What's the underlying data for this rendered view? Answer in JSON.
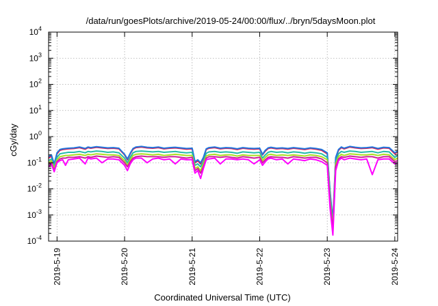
{
  "chart_data": {
    "type": "line",
    "title": "/data/run/goesPlots/archive/2019-05-24/00:00/flux/../bryn/5daysMoon.plot",
    "xlabel": "Coordinated Universal Time (UTC)",
    "ylabel": "cGy/day",
    "yscale": "log",
    "ylim": [
      0.0001,
      10000
    ],
    "xlim": [
      "2019-05-18 21:00",
      "2019-05-24 01:00"
    ],
    "grid": true,
    "legend": "none",
    "x_tick_labels": [
      "2019-5-19",
      "2019-5-20",
      "2019-5-21",
      "2019-5-22",
      "2019-5-23",
      "2019-5-24"
    ],
    "y_tick_labels": [
      {
        "base": "10",
        "exp": "-4"
      },
      {
        "base": "10",
        "exp": "-3"
      },
      {
        "base": "10",
        "exp": "-2"
      },
      {
        "base": "10",
        "exp": "-1"
      },
      {
        "base": "10",
        "exp": "0"
      },
      {
        "base": "10",
        "exp": "1"
      },
      {
        "base": "10",
        "exp": "2"
      },
      {
        "base": "10",
        "exp": "3"
      },
      {
        "base": "10",
        "exp": "4"
      }
    ],
    "x": [
      "2019-05-18 21:00",
      "2019-05-18 22:00",
      "2019-05-18 23:00",
      "2019-05-19 00:00",
      "2019-05-19 01:00",
      "2019-05-19 02:00",
      "2019-05-19 03:00",
      "2019-05-19 04:00",
      "2019-05-19 06:00",
      "2019-05-19 08:00",
      "2019-05-19 10:00",
      "2019-05-19 11:00",
      "2019-05-19 12:00",
      "2019-05-19 14:00",
      "2019-05-19 16:00",
      "2019-05-19 18:00",
      "2019-05-19 20:00",
      "2019-05-19 22:00",
      "2019-05-20 00:00",
      "2019-05-20 01:00",
      "2019-05-20 02:00",
      "2019-05-20 03:00",
      "2019-05-20 04:00",
      "2019-05-20 06:00",
      "2019-05-20 08:00",
      "2019-05-20 10:00",
      "2019-05-20 12:00",
      "2019-05-20 14:00",
      "2019-05-20 16:00",
      "2019-05-20 18:00",
      "2019-05-20 20:00",
      "2019-05-20 22:00",
      "2019-05-21 00:00",
      "2019-05-21 01:00",
      "2019-05-21 02:00",
      "2019-05-21 03:00",
      "2019-05-21 04:00",
      "2019-05-21 05:00",
      "2019-05-21 06:00",
      "2019-05-21 08:00",
      "2019-05-21 10:00",
      "2019-05-21 12:00",
      "2019-05-21 14:00",
      "2019-05-21 16:00",
      "2019-05-21 18:00",
      "2019-05-21 20:00",
      "2019-05-21 22:00",
      "2019-05-22 00:00",
      "2019-05-22 01:00",
      "2019-05-22 02:00",
      "2019-05-22 03:00",
      "2019-05-22 04:00",
      "2019-05-22 06:00",
      "2019-05-22 08:00",
      "2019-05-22 10:00",
      "2019-05-22 12:00",
      "2019-05-22 14:00",
      "2019-05-22 16:00",
      "2019-05-22 18:00",
      "2019-05-22 20:00",
      "2019-05-22 22:00",
      "2019-05-23 00:00",
      "2019-05-23 01:00",
      "2019-05-23 02:00",
      "2019-05-23 03:00",
      "2019-05-23 04:00",
      "2019-05-23 05:00",
      "2019-05-23 06:00",
      "2019-05-23 08:00",
      "2019-05-23 10:00",
      "2019-05-23 12:00",
      "2019-05-23 14:00",
      "2019-05-23 16:00",
      "2019-05-23 18:00",
      "2019-05-23 20:00",
      "2019-05-23 22:00",
      "2019-05-24 00:00",
      "2019-05-24 01:00"
    ],
    "series": [
      {
        "color": "#dd1144",
        "values": [
          0.15,
          0.18,
          0.08,
          0.22,
          0.3,
          0.32,
          0.33,
          0.34,
          0.35,
          0.38,
          0.33,
          0.38,
          0.36,
          0.39,
          0.37,
          0.35,
          0.36,
          0.34,
          0.2,
          0.13,
          0.22,
          0.33,
          0.38,
          0.4,
          0.37,
          0.36,
          0.38,
          0.34,
          0.36,
          0.37,
          0.35,
          0.33,
          0.34,
          0.1,
          0.12,
          0.09,
          0.15,
          0.32,
          0.36,
          0.38,
          0.34,
          0.36,
          0.35,
          0.32,
          0.36,
          0.34,
          0.33,
          0.34,
          0.2,
          0.28,
          0.35,
          0.37,
          0.34,
          0.35,
          0.33,
          0.36,
          0.34,
          0.32,
          0.35,
          0.33,
          0.3,
          0.22,
          0.007,
          0.0005,
          0.15,
          0.3,
          0.38,
          0.34,
          0.4,
          0.37,
          0.35,
          0.36,
          0.38,
          0.33,
          0.37,
          0.36,
          0.22,
          0.26
        ]
      },
      {
        "color": "#2277dd",
        "values": [
          0.17,
          0.2,
          0.09,
          0.24,
          0.32,
          0.34,
          0.35,
          0.36,
          0.37,
          0.4,
          0.35,
          0.4,
          0.38,
          0.41,
          0.39,
          0.37,
          0.38,
          0.36,
          0.21,
          0.14,
          0.23,
          0.35,
          0.4,
          0.42,
          0.39,
          0.38,
          0.4,
          0.36,
          0.38,
          0.39,
          0.37,
          0.35,
          0.36,
          0.11,
          0.13,
          0.1,
          0.16,
          0.34,
          0.38,
          0.4,
          0.36,
          0.38,
          0.37,
          0.34,
          0.38,
          0.36,
          0.35,
          0.36,
          0.21,
          0.3,
          0.37,
          0.39,
          0.36,
          0.37,
          0.35,
          0.38,
          0.36,
          0.34,
          0.37,
          0.35,
          0.32,
          0.24,
          0.008,
          0.0006,
          0.16,
          0.32,
          0.4,
          0.36,
          0.42,
          0.39,
          0.37,
          0.38,
          0.4,
          0.35,
          0.39,
          0.38,
          0.24,
          0.28
        ]
      },
      {
        "color": "#22bbaa",
        "values": [
          0.12,
          0.14,
          0.07,
          0.16,
          0.22,
          0.23,
          0.24,
          0.25,
          0.25,
          0.27,
          0.24,
          0.27,
          0.26,
          0.28,
          0.27,
          0.25,
          0.26,
          0.24,
          0.15,
          0.1,
          0.16,
          0.24,
          0.27,
          0.28,
          0.27,
          0.26,
          0.27,
          0.25,
          0.26,
          0.27,
          0.25,
          0.24,
          0.25,
          0.08,
          0.09,
          0.07,
          0.11,
          0.23,
          0.26,
          0.27,
          0.25,
          0.26,
          0.25,
          0.23,
          0.26,
          0.25,
          0.24,
          0.25,
          0.15,
          0.2,
          0.25,
          0.27,
          0.25,
          0.26,
          0.24,
          0.26,
          0.25,
          0.23,
          0.25,
          0.24,
          0.22,
          0.16,
          0.006,
          0.0004,
          0.11,
          0.22,
          0.27,
          0.25,
          0.28,
          0.27,
          0.25,
          0.26,
          0.27,
          0.24,
          0.27,
          0.26,
          0.16,
          0.19
        ]
      },
      {
        "color": "#aadd22",
        "values": [
          0.1,
          0.12,
          0.06,
          0.13,
          0.17,
          0.18,
          0.19,
          0.19,
          0.2,
          0.21,
          0.19,
          0.21,
          0.2,
          0.22,
          0.21,
          0.2,
          0.2,
          0.19,
          0.12,
          0.08,
          0.13,
          0.19,
          0.21,
          0.22,
          0.21,
          0.2,
          0.21,
          0.19,
          0.2,
          0.21,
          0.2,
          0.19,
          0.19,
          0.06,
          0.07,
          0.05,
          0.09,
          0.18,
          0.2,
          0.21,
          0.19,
          0.2,
          0.2,
          0.18,
          0.2,
          0.19,
          0.19,
          0.19,
          0.12,
          0.16,
          0.2,
          0.21,
          0.19,
          0.2,
          0.19,
          0.2,
          0.19,
          0.18,
          0.2,
          0.19,
          0.17,
          0.13,
          0.004,
          0.0003,
          0.09,
          0.17,
          0.21,
          0.19,
          0.22,
          0.21,
          0.2,
          0.2,
          0.21,
          0.19,
          0.21,
          0.2,
          0.13,
          0.15
        ]
      },
      {
        "color": "#cc2299",
        "values": [
          0.09,
          0.1,
          0.05,
          0.11,
          0.14,
          0.15,
          0.15,
          0.16,
          0.16,
          0.17,
          0.15,
          0.17,
          0.16,
          0.18,
          0.17,
          0.16,
          0.17,
          0.16,
          0.1,
          0.07,
          0.11,
          0.15,
          0.17,
          0.18,
          0.17,
          0.17,
          0.17,
          0.16,
          0.17,
          0.17,
          0.16,
          0.15,
          0.16,
          0.05,
          0.06,
          0.04,
          0.07,
          0.15,
          0.17,
          0.17,
          0.16,
          0.17,
          0.16,
          0.15,
          0.17,
          0.16,
          0.15,
          0.16,
          0.1,
          0.13,
          0.16,
          0.17,
          0.16,
          0.16,
          0.15,
          0.17,
          0.16,
          0.15,
          0.16,
          0.16,
          0.14,
          0.1,
          0.003,
          0.00025,
          0.07,
          0.14,
          0.17,
          0.16,
          0.18,
          0.17,
          0.16,
          0.17,
          0.17,
          0.15,
          0.17,
          0.17,
          0.11,
          0.12
        ]
      },
      {
        "color": "#ff00ff",
        "values": [
          0.07,
          0.09,
          0.045,
          0.1,
          0.12,
          0.13,
          0.08,
          0.13,
          0.14,
          0.15,
          0.09,
          0.15,
          0.14,
          0.15,
          0.1,
          0.14,
          0.14,
          0.13,
          0.08,
          0.05,
          0.09,
          0.13,
          0.15,
          0.15,
          0.1,
          0.14,
          0.15,
          0.13,
          0.14,
          0.09,
          0.14,
          0.13,
          0.13,
          0.04,
          0.05,
          0.025,
          0.06,
          0.13,
          0.14,
          0.15,
          0.09,
          0.14,
          0.14,
          0.13,
          0.14,
          0.13,
          0.09,
          0.13,
          0.08,
          0.11,
          0.14,
          0.15,
          0.13,
          0.14,
          0.09,
          0.14,
          0.13,
          0.12,
          0.14,
          0.13,
          0.11,
          0.08,
          0.0018,
          0.00017,
          0.05,
          0.12,
          0.15,
          0.13,
          0.15,
          0.14,
          0.13,
          0.14,
          0.035,
          0.13,
          0.14,
          0.14,
          0.09,
          0.1
        ]
      }
    ]
  }
}
